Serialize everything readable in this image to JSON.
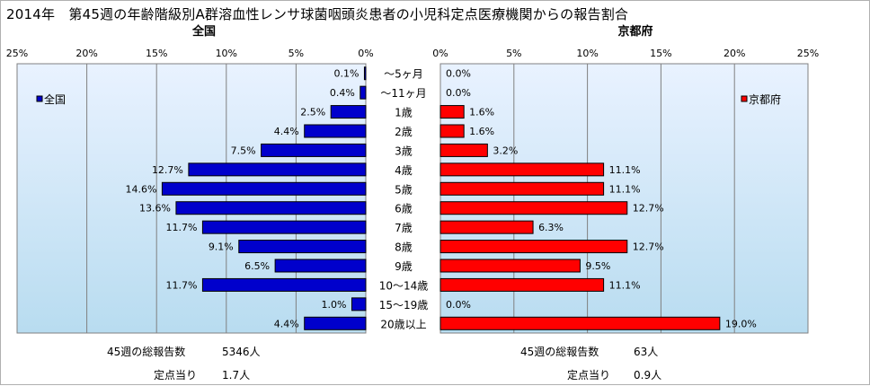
{
  "title": "2014年　第45週の年齢階級別A群溶血性レンサ球菌咽頭炎患者の小児科定点医療機関からの報告割合",
  "chart_data": [
    {
      "type": "bar",
      "orientation": "horizontal",
      "direction": "reversed",
      "title": "全国",
      "categories": [
        "～5ヶ月",
        "～11ヶ月",
        "1歳",
        "2歳",
        "3歳",
        "4歳",
        "5歳",
        "6歳",
        "7歳",
        "8歳",
        "9歳",
        "10～14歳",
        "15～19歳",
        "20歳以上"
      ],
      "series": [
        {
          "name": "全国",
          "color": "#0000cc",
          "values": [
            0.1,
            0.4,
            2.5,
            4.4,
            7.5,
            12.7,
            14.6,
            13.6,
            11.7,
            9.1,
            6.5,
            11.7,
            1.0,
            4.4
          ],
          "labels": [
            "0.1%",
            "0.4%",
            "2.5%",
            "4.4%",
            "7.5%",
            "12.7%",
            "14.6%",
            "13.6%",
            "11.7%",
            "9.1%",
            "6.5%",
            "11.7%",
            "1.0%",
            "4.4%"
          ]
        }
      ],
      "xlim": [
        0,
        25
      ],
      "xticks": [
        "0%",
        "5%",
        "10%",
        "15%",
        "20%",
        "25%"
      ],
      "grid": true,
      "legend": "top-left"
    },
    {
      "type": "bar",
      "orientation": "horizontal",
      "title": "京都府",
      "categories": [
        "～5ヶ月",
        "～11ヶ月",
        "1歳",
        "2歳",
        "3歳",
        "4歳",
        "5歳",
        "6歳",
        "7歳",
        "8歳",
        "9歳",
        "10～14歳",
        "15～19歳",
        "20歳以上"
      ],
      "series": [
        {
          "name": "京都府",
          "color": "#ff0000",
          "values": [
            0.0,
            0.0,
            1.6,
            1.6,
            3.2,
            11.1,
            11.1,
            12.7,
            6.3,
            12.7,
            9.5,
            11.1,
            0.0,
            19.0
          ],
          "labels": [
            "0.0%",
            "0.0%",
            "1.6%",
            "1.6%",
            "3.2%",
            "11.1%",
            "11.1%",
            "12.7%",
            "6.3%",
            "12.7%",
            "9.5%",
            "11.1%",
            "0.0%",
            "19.0%"
          ]
        }
      ],
      "xlim": [
        0,
        25
      ],
      "xticks": [
        "0%",
        "5%",
        "10%",
        "15%",
        "20%",
        "25%"
      ],
      "grid": true,
      "legend": "top-right"
    }
  ],
  "stats": {
    "national": {
      "total_label": "45週の総報告数",
      "total_value": "5346人",
      "per_label": "定点当り",
      "per_value": "1.7人"
    },
    "kyoto": {
      "total_label": "45週の総報告数",
      "total_value": "63人",
      "per_label": "定点当り",
      "per_value": "0.9人"
    }
  }
}
